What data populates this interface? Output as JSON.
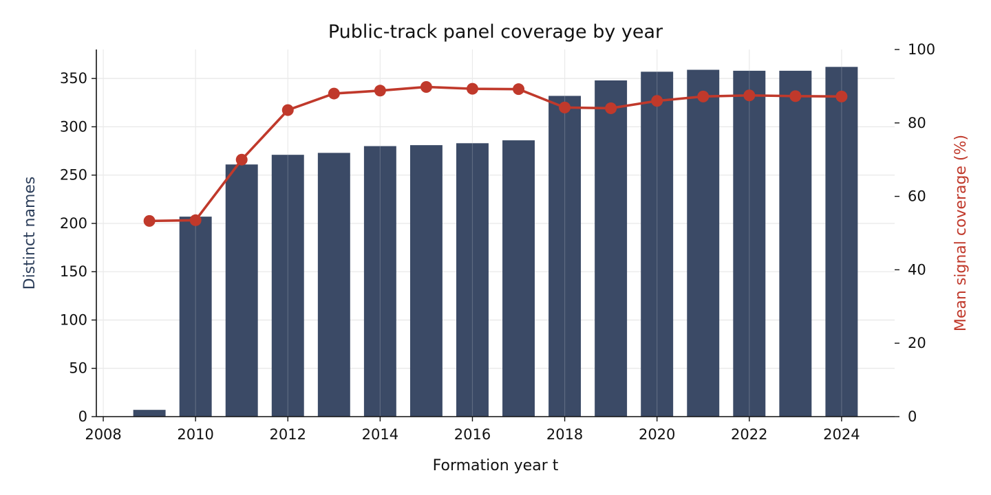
{
  "chart_data": {
    "type": "bar",
    "title": "Public-track panel coverage by year",
    "xlabel": "Formation year t",
    "ylabel": "Distinct names",
    "y2label": "Mean signal coverage (%)",
    "x": [
      2009,
      2010,
      2011,
      2012,
      2013,
      2014,
      2015,
      2016,
      2017,
      2018,
      2019,
      2020,
      2021,
      2022,
      2023,
      2024
    ],
    "xlim": [
      2007.85,
      2025.15
    ],
    "xticks": [
      2008,
      2010,
      2012,
      2014,
      2016,
      2018,
      2020,
      2022,
      2024
    ],
    "ylim": [
      0,
      380
    ],
    "yticks": [
      0,
      50,
      100,
      150,
      200,
      250,
      300,
      350
    ],
    "y2lim": [
      0,
      100
    ],
    "y2ticks": [
      0,
      20,
      40,
      60,
      80,
      100
    ],
    "grid": true,
    "series": [
      {
        "type": "bar",
        "axis": "left",
        "color": "#3b4a66",
        "values": [
          7,
          207,
          261,
          271,
          273,
          280,
          281,
          283,
          286,
          332,
          348,
          357,
          359,
          358,
          358,
          362
        ]
      },
      {
        "type": "line",
        "axis": "right",
        "color": "#c0392b",
        "values": [
          53.3,
          53.5,
          70.0,
          83.5,
          88.0,
          88.8,
          89.8,
          89.3,
          89.2,
          84.2,
          84.0,
          86.0,
          87.2,
          87.5,
          87.3,
          87.2
        ]
      }
    ]
  }
}
